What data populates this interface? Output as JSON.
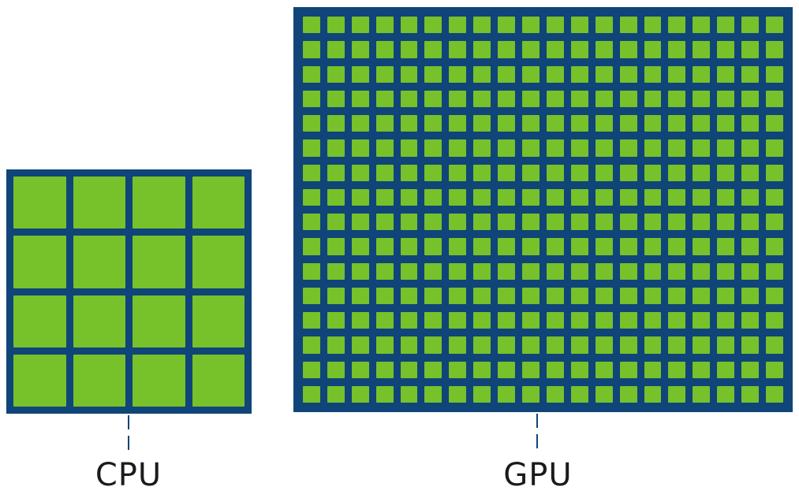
{
  "colors": {
    "chip_border": "#0f4578",
    "core": "#77c12a",
    "connector": "#0f4578",
    "label": "#1b1b1b"
  },
  "cpu": {
    "label": "CPU",
    "core_rows": 4,
    "core_cols": 4
  },
  "gpu": {
    "label": "GPU",
    "core_rows": 16,
    "core_cols": 20
  }
}
